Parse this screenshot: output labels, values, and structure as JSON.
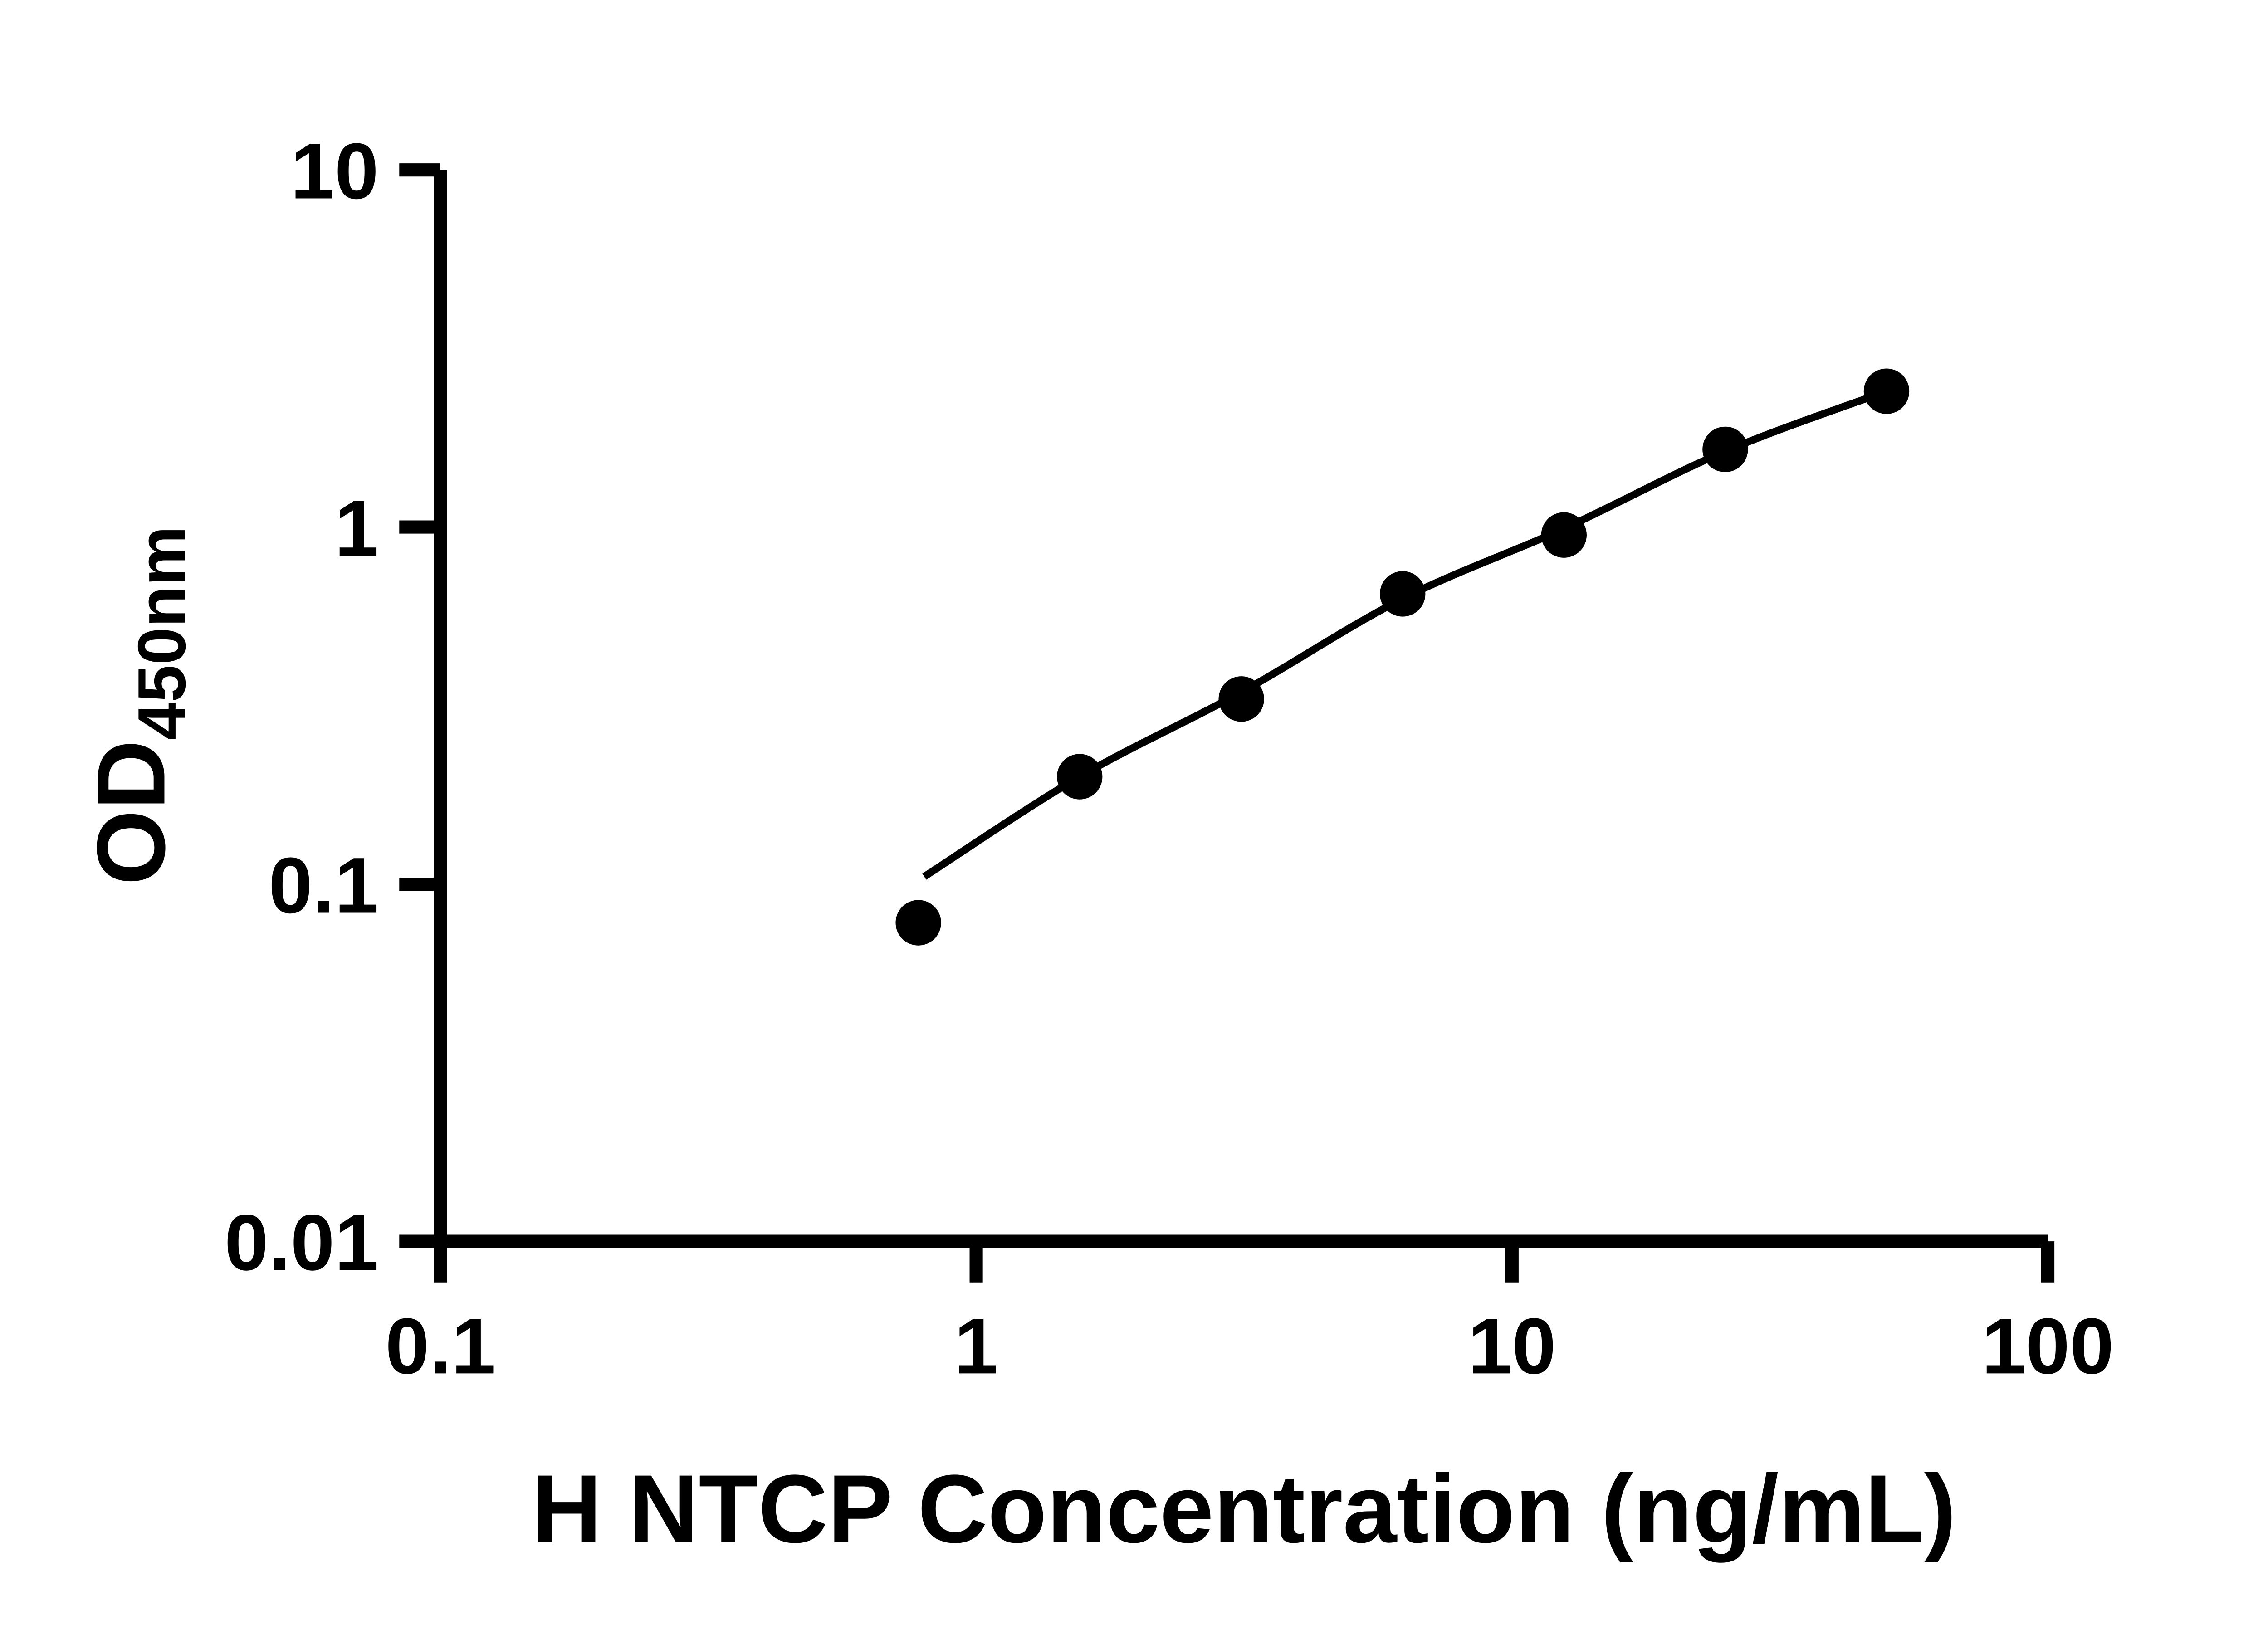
{
  "chart_data": {
    "type": "scatter",
    "title": "",
    "xlabel": "H NTCP Concentration (ng/mL)",
    "ylabel_main": "OD",
    "ylabel_sub": "450nm",
    "x_scale": "log",
    "y_scale": "log",
    "xlim": [
      0.1,
      100
    ],
    "ylim": [
      0.01,
      10
    ],
    "x_ticks": [
      0.1,
      1,
      10,
      100
    ],
    "x_tick_labels": [
      "0.1",
      "1",
      "10",
      "100"
    ],
    "y_ticks": [
      0.01,
      0.1,
      1,
      10
    ],
    "y_tick_labels": [
      "0.01",
      "0.1",
      "1",
      "10"
    ],
    "grid": false,
    "legend": "none",
    "series": [
      {
        "name": "standard-curve-points",
        "type": "scatter",
        "x": [
          0.78,
          1.56,
          3.125,
          6.25,
          12.5,
          25,
          50
        ],
        "y": [
          0.078,
          0.2,
          0.33,
          0.65,
          0.95,
          1.65,
          2.4
        ]
      }
    ],
    "fit_curve": {
      "name": "fitted-line",
      "x": [
        0.8,
        1.56,
        3.125,
        6.25,
        12.5,
        25,
        50
      ],
      "y": [
        0.105,
        0.2,
        0.345,
        0.63,
        0.99,
        1.63,
        2.4
      ]
    },
    "marker_color": "#000000",
    "line_color": "#000000",
    "axis_color": "#000000",
    "background_color": "#ffffff"
  }
}
